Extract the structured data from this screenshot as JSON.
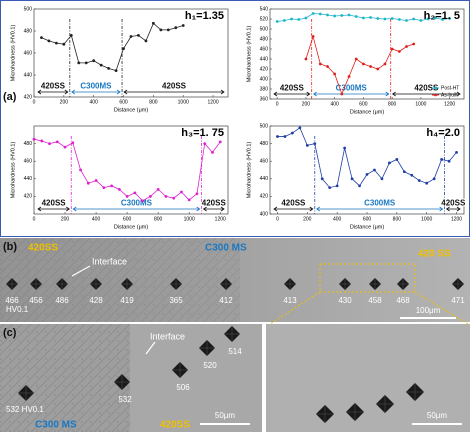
{
  "chart_data": [
    {
      "type": "line",
      "annotation": "h₁=1.35",
      "xlabel": "Distance (μm)",
      "ylabel": "Microhardness (HV0.1)",
      "xlim": [
        0,
        1300
      ],
      "xticks": [
        0,
        200,
        400,
        600,
        800,
        1000,
        1200
      ],
      "ylim": [
        420,
        500
      ],
      "yticks": [
        420,
        440,
        460,
        480,
        500
      ],
      "interfaces": [
        240,
        590
      ],
      "regions": [
        "420SS",
        "C300MS",
        "420SS"
      ],
      "series": [
        {
          "color": "#222222",
          "x": [
            50,
            100,
            150,
            200,
            250,
            300,
            350,
            400,
            450,
            500,
            550,
            600,
            650,
            700,
            750,
            800,
            850,
            900,
            950,
            1000
          ],
          "values": [
            474,
            471,
            469,
            468,
            476,
            451,
            451,
            453,
            449,
            446,
            444,
            464,
            475,
            476,
            471,
            487,
            481,
            481,
            483,
            485
          ]
        }
      ]
    },
    {
      "type": "line",
      "annotation": "h₂=1. 5",
      "xlabel": "Distance (μm)",
      "ylabel": "Microhardness (HV0.1)",
      "xlim": [
        -50,
        1300
      ],
      "xticks": [
        0,
        200,
        400,
        600,
        800,
        1000,
        1200
      ],
      "ylim": [
        360,
        540
      ],
      "yticks": [
        360,
        380,
        400,
        420,
        440,
        460,
        480,
        500,
        520,
        540
      ],
      "interfaces": [
        240,
        790
      ],
      "regions": [
        "420SS",
        "C300MS",
        "420SS"
      ],
      "legend": "lower right",
      "series": [
        {
          "name": "Post-HT",
          "color": "#1cb5c9",
          "x": [
            0,
            50,
            100,
            150,
            200,
            250,
            300,
            350,
            400,
            450,
            500,
            550,
            600,
            650,
            700,
            750,
            800,
            850,
            900,
            950,
            1000,
            1050,
            1100,
            1150,
            1200
          ],
          "values": [
            515,
            517,
            520,
            519,
            522,
            531,
            530,
            528,
            526,
            527,
            528,
            525,
            522,
            523,
            521,
            520,
            521,
            519,
            517,
            520,
            517,
            520,
            522,
            519,
            521
          ]
        },
        {
          "name": "As-built",
          "color": "#e0201b",
          "x": [
            200,
            250,
            300,
            350,
            400,
            450,
            500,
            550,
            600,
            650,
            700,
            750,
            800,
            850,
            900,
            950
          ],
          "values": [
            440,
            485,
            430,
            425,
            410,
            370,
            405,
            440,
            430,
            425,
            420,
            430,
            460,
            455,
            465,
            470
          ]
        }
      ]
    },
    {
      "type": "line",
      "annotation": "h₃=1. 75",
      "xlabel": "Distance (μm)",
      "ylabel": "Microhardness (HV0.1)",
      "xlim": [
        0,
        1250
      ],
      "xticks": [
        0,
        200,
        400,
        600,
        800,
        1000,
        1200
      ],
      "ylim": [
        400,
        500
      ],
      "yticks": [
        420,
        440,
        460,
        480
      ],
      "interfaces": [
        240,
        1080
      ],
      "regions": [
        "420SS",
        "C300MS",
        "420SS"
      ],
      "series": [
        {
          "color": "#e020d0",
          "x": [
            0,
            50,
            100,
            150,
            200,
            250,
            300,
            350,
            400,
            450,
            500,
            550,
            600,
            650,
            700,
            750,
            800,
            850,
            900,
            950,
            1000,
            1050,
            1100,
            1150,
            1200
          ],
          "values": [
            485,
            483,
            480,
            482,
            476,
            481,
            450,
            435,
            438,
            430,
            432,
            428,
            420,
            424,
            415,
            420,
            428,
            420,
            418,
            425,
            416,
            423,
            480,
            470,
            482
          ]
        }
      ]
    },
    {
      "type": "line",
      "annotation": "h₄=2.0",
      "xlabel": "Distance (μm)",
      "ylabel": "Microhardness (HV0.1)",
      "xlim": [
        -50,
        1250
      ],
      "xticks": [
        0,
        200,
        400,
        600,
        800,
        1000,
        1200
      ],
      "ylim": [
        400,
        500
      ],
      "yticks": [
        400,
        420,
        440,
        460,
        480,
        500
      ],
      "interfaces": [
        250,
        1120
      ],
      "regions": [
        "420SS",
        "C300MS",
        "420SS"
      ],
      "series": [
        {
          "color": "#1f3fa8",
          "x": [
            0,
            50,
            100,
            150,
            200,
            250,
            300,
            350,
            400,
            450,
            500,
            550,
            600,
            650,
            700,
            750,
            800,
            850,
            900,
            950,
            1000,
            1050,
            1100,
            1150,
            1200
          ],
          "values": [
            488,
            488,
            492,
            498,
            478,
            480,
            440,
            430,
            432,
            475,
            440,
            432,
            445,
            450,
            440,
            458,
            462,
            448,
            444,
            438,
            435,
            440,
            462,
            460,
            470
          ]
        }
      ]
    }
  ],
  "panels": [
    "(a)",
    "(b)",
    "(c)"
  ],
  "micrograph_b": {
    "left": "420SS",
    "middle": "C300 MS",
    "right": "420 SS",
    "interface": "Interface",
    "indents": [
      466,
      456,
      486,
      428,
      419,
      365,
      412,
      413,
      430,
      458,
      468,
      471
    ],
    "unit": "HV0.1",
    "scale": "100μm"
  },
  "micrograph_c": {
    "interface": "Interface",
    "first": "532 HV0.1",
    "indents": [
      532,
      506,
      520,
      514
    ],
    "left": "C300 MS",
    "right": "420SS",
    "scale_left": "50μm",
    "scale_right": "50μm"
  }
}
